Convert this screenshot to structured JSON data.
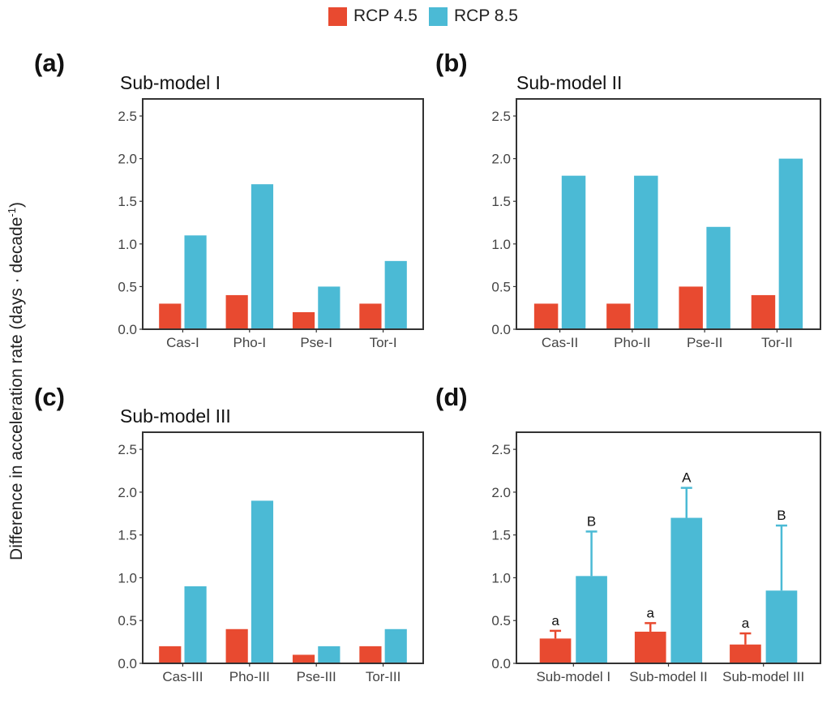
{
  "colors": {
    "rcp45": "#E84A30",
    "rcp85": "#4BBAD5",
    "frame": "#333333"
  },
  "legend": {
    "position": "top",
    "items": [
      "RCP 4.5",
      "RCP 8.5"
    ]
  },
  "ylabel": {
    "main": "Difference in acceleration rate (days · decade",
    "sup": "-1",
    "end": ")"
  },
  "chart_data": [
    {
      "type": "bar",
      "panel": "(a)",
      "title": "Sub-model I",
      "categories": [
        "Cas-I",
        "Pho-I",
        "Pse-I",
        "Tor-I"
      ],
      "series": [
        {
          "name": "RCP 4.5",
          "values": [
            0.3,
            0.4,
            0.2,
            0.3
          ]
        },
        {
          "name": "RCP 8.5",
          "values": [
            1.1,
            1.7,
            0.5,
            0.8
          ]
        }
      ],
      "ylim": [
        0,
        2.7
      ],
      "yticks": [
        "0.0",
        "0.5",
        "1.0",
        "1.5",
        "2.0",
        "2.5"
      ],
      "grid": false
    },
    {
      "type": "bar",
      "panel": "(b)",
      "title": "Sub-model II",
      "categories": [
        "Cas-II",
        "Pho-II",
        "Pse-II",
        "Tor-II"
      ],
      "series": [
        {
          "name": "RCP 4.5",
          "values": [
            0.3,
            0.3,
            0.5,
            0.4
          ]
        },
        {
          "name": "RCP 8.5",
          "values": [
            1.8,
            1.8,
            1.2,
            2.0
          ]
        }
      ],
      "ylim": [
        0,
        2.7
      ],
      "yticks": [
        "0.0",
        "0.5",
        "1.0",
        "1.5",
        "2.0",
        "2.5"
      ],
      "grid": false
    },
    {
      "type": "bar",
      "panel": "(c)",
      "title": "Sub-model III",
      "categories": [
        "Cas-III",
        "Pho-III",
        "Pse-III",
        "Tor-III"
      ],
      "series": [
        {
          "name": "RCP 4.5",
          "values": [
            0.2,
            0.4,
            0.1,
            0.2
          ]
        },
        {
          "name": "RCP 8.5",
          "values": [
            0.9,
            1.9,
            0.2,
            0.4
          ]
        }
      ],
      "ylim": [
        0,
        2.7
      ],
      "yticks": [
        "0.0",
        "0.5",
        "1.0",
        "1.5",
        "2.0",
        "2.5"
      ],
      "grid": false
    },
    {
      "type": "bar",
      "panel": "(d)",
      "title": "",
      "categories": [
        "Sub-model I",
        "Sub-model II",
        "Sub-model III"
      ],
      "series": [
        {
          "name": "RCP 4.5",
          "values": [
            0.29,
            0.37,
            0.22
          ],
          "error_upper": [
            0.38,
            0.47,
            0.35
          ],
          "labels": [
            "a",
            "a",
            "a"
          ]
        },
        {
          "name": "RCP 8.5",
          "values": [
            1.02,
            1.7,
            0.85
          ],
          "error_upper": [
            1.54,
            2.05,
            1.61
          ],
          "labels": [
            "B",
            "A",
            "B"
          ]
        }
      ],
      "ylim": [
        0,
        2.7
      ],
      "yticks": [
        "0.0",
        "0.5",
        "1.0",
        "1.5",
        "2.0",
        "2.5"
      ],
      "grid": false
    }
  ]
}
